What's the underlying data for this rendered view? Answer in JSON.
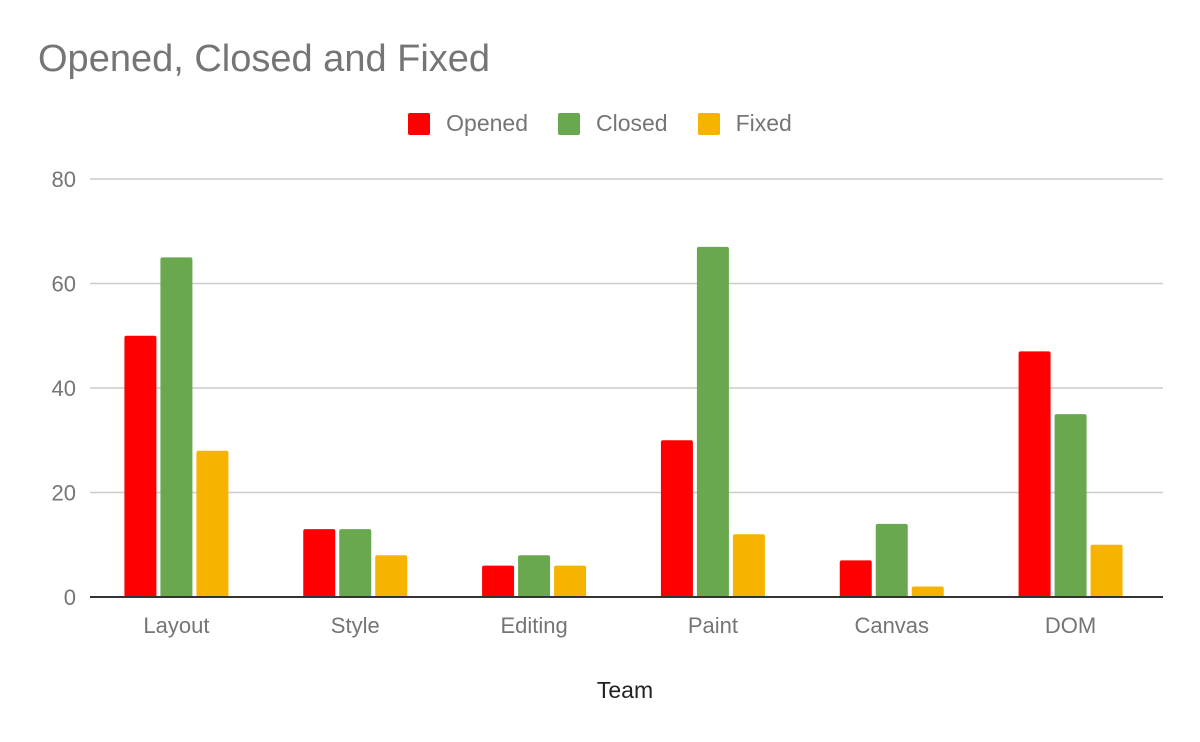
{
  "chart_data": {
    "type": "bar",
    "title": "Opened, Closed and Fixed",
    "xlabel": "Team",
    "ylabel": "",
    "ylim": [
      0,
      80
    ],
    "yticks": [
      0,
      20,
      40,
      60,
      80
    ],
    "grid": true,
    "legend_position": "top",
    "categories": [
      "Layout",
      "Style",
      "Editing",
      "Paint",
      "Canvas",
      "DOM"
    ],
    "series": [
      {
        "name": "Opened",
        "color": "#ff0000",
        "values": [
          50,
          13,
          6,
          30,
          7,
          47
        ]
      },
      {
        "name": "Closed",
        "color": "#6aa84f",
        "values": [
          65,
          13,
          8,
          67,
          14,
          35
        ]
      },
      {
        "name": "Fixed",
        "color": "#f6b400",
        "values": [
          28,
          8,
          6,
          12,
          2,
          10
        ]
      }
    ]
  }
}
